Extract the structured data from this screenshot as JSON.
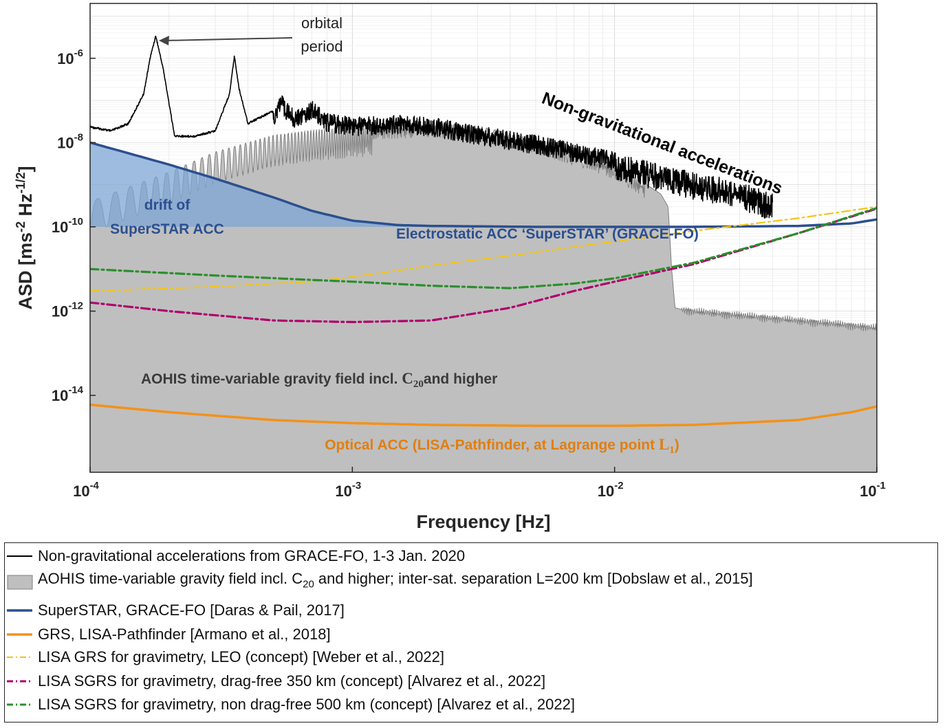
{
  "colors": {
    "nongrav": "#000000",
    "aohis_fill": "#bfbfbf",
    "aohis_line": "#7f7f7f",
    "superstar": "#2b4f8f",
    "superstar_fill": "#7ea6d4",
    "grs_lisa": "#f39119",
    "lisa_leo": "#f4c318",
    "sgrs_350": "#b0006d",
    "sgrs_500": "#2b8f2b"
  },
  "chart_data": {
    "type": "line",
    "xscale": "log",
    "yscale": "log",
    "xlim": [
      0.0001,
      0.1
    ],
    "ylim": [
      1.5e-16,
      2e-05
    ],
    "xlabel": "Frequency [Hz]",
    "ylabel": "ASD [ms^-2 Hz^-1/2]",
    "xticks": [
      {
        "value": 0.0001,
        "base": "10",
        "exp": "-4"
      },
      {
        "value": 0.001,
        "base": "10",
        "exp": "-3"
      },
      {
        "value": 0.01,
        "base": "10",
        "exp": "-2"
      },
      {
        "value": 0.1,
        "base": "10",
        "exp": "-1"
      }
    ],
    "yticks": [
      {
        "value": 1e-06,
        "base": "10",
        "exp": "-6"
      },
      {
        "value": 1e-08,
        "base": "10",
        "exp": "-8"
      },
      {
        "value": 1e-10,
        "base": "10",
        "exp": "-10"
      },
      {
        "value": 1e-12,
        "base": "10",
        "exp": "-12"
      },
      {
        "value": 1e-14,
        "base": "10",
        "exp": "-14"
      }
    ],
    "series": [
      {
        "name": "Non-gravitational accelerations from GRACE-FO, 1-3 Jan. 2020",
        "style": "solid",
        "x": [
          0.0001,
          0.00012,
          0.00014,
          0.00016,
          0.00017,
          0.000178,
          0.00019,
          0.00021,
          0.00025,
          0.0003,
          0.00034,
          0.000355,
          0.00037,
          0.0004,
          0.0005,
          0.00053,
          0.0006,
          0.0007,
          0.0008,
          0.001,
          0.0015,
          0.002,
          0.003,
          0.005,
          0.01,
          0.015,
          0.02,
          0.03,
          0.04
        ],
        "y": [
          2.5e-08,
          2e-08,
          3e-08,
          1.5e-07,
          1.2e-06,
          3.6e-06,
          6e-07,
          1.5e-08,
          1.5e-08,
          2e-08,
          1.5e-07,
          1.2e-06,
          2e-07,
          3e-08,
          6e-08,
          1.5e-07,
          6e-08,
          1e-07,
          5e-08,
          4e-08,
          4.5e-08,
          4e-08,
          2.5e-08,
          1.5e-08,
          6e-09,
          3e-09,
          2e-09,
          1.2e-09,
          6e-10
        ]
      },
      {
        "name": "AOHIS time-variable gravity field incl. C20 and higher; inter-sat. separation L=200 km [Dobslaw et al., 2015]",
        "style": "fill",
        "x": [
          0.0001,
          0.0002,
          0.0003,
          0.0005,
          0.0007,
          0.001,
          0.002,
          0.003,
          0.005,
          0.008,
          0.01,
          0.012,
          0.015,
          0.016,
          0.0165,
          0.017,
          0.018,
          0.02,
          0.03,
          0.05,
          0.07,
          0.1
        ],
        "y": [
          4e-10,
          2e-09,
          6e-09,
          1.5e-08,
          2e-08,
          2.5e-08,
          3e-08,
          2.5e-08,
          1.2e-08,
          5e-09,
          3e-09,
          1.5e-09,
          6e-10,
          3e-10,
          1e-11,
          1.2e-12,
          1.1e-12,
          1e-12,
          8e-13,
          6e-13,
          5e-13,
          4e-13
        ]
      },
      {
        "name": "SuperSTAR, GRACE-FO [Daras & Pail, 2017]",
        "style": "solid",
        "x": [
          0.0001,
          0.0002,
          0.0003,
          0.0005,
          0.0007,
          0.001,
          0.0015,
          0.002,
          0.005,
          0.01,
          0.02,
          0.05,
          0.08,
          0.1
        ],
        "y": [
          1e-08,
          3e-09,
          1.4e-09,
          5e-10,
          2.4e-10,
          1.4e-10,
          1.1e-10,
          1.05e-10,
          1e-10,
          1e-10,
          1e-10,
          1.05e-10,
          1.2e-10,
          1.5e-10
        ]
      },
      {
        "name": "GRS, LISA-Pathfinder [Armano et al., 2018]",
        "style": "solid",
        "x": [
          0.0001,
          0.0002,
          0.0005,
          0.001,
          0.002,
          0.005,
          0.01,
          0.02,
          0.05,
          0.08,
          0.1
        ],
        "y": [
          6e-15,
          4e-15,
          2.6e-15,
          2.2e-15,
          2e-15,
          1.9e-15,
          1.9e-15,
          2e-15,
          2.6e-15,
          4e-15,
          5.5e-15
        ]
      },
      {
        "name": "LISA GRS for gravimetry, LEO (concept) [Weber et al., 2022]",
        "style": "dashdot",
        "x": [
          0.0001,
          0.0003,
          0.0007,
          0.001,
          0.002,
          0.005,
          0.01,
          0.02,
          0.05,
          0.1
        ],
        "y": [
          3e-12,
          3.8e-12,
          5e-12,
          6.5e-12,
          1.2e-11,
          2.5e-11,
          4.5e-11,
          8e-11,
          1.6e-10,
          3e-10
        ]
      },
      {
        "name": "LISA SGRS for gravimetry, drag-free 350 km (concept) [Alvarez et al., 2022]",
        "style": "dashdot",
        "x": [
          0.0001,
          0.0002,
          0.0005,
          0.001,
          0.002,
          0.004,
          0.007,
          0.01,
          0.02,
          0.05,
          0.1
        ],
        "y": [
          1.6e-12,
          1e-12,
          6e-13,
          5.5e-13,
          6e-13,
          1.2e-12,
          3e-12,
          5e-12,
          1.3e-11,
          7e-11,
          2.7e-10
        ]
      },
      {
        "name": "LISA SGRS for gravimetry, non drag-free 500 km (concept) [Alvarez et al., 2022]",
        "style": "dashdot",
        "x": [
          0.0001,
          0.0003,
          0.0007,
          0.001,
          0.002,
          0.004,
          0.007,
          0.01,
          0.02,
          0.05,
          0.1
        ],
        "y": [
          1e-11,
          7e-12,
          5.5e-12,
          5e-12,
          4e-12,
          3.5e-12,
          4.5e-12,
          6e-12,
          1.4e-11,
          7e-11,
          2.8e-10
        ]
      }
    ],
    "annotations": {
      "orbital_line1": "orbital",
      "orbital_line2": "period",
      "nongrav": "Non-gravitational accelerations",
      "drift_line1": "drift of",
      "drift_line2": "SuperSTAR ACC",
      "electrostatic": "Electrostatic ACC ‘SuperSTAR’ (GRACE-FO)",
      "aohis_pre": "AOHIS time-variable gravity field incl. ",
      "aohis_sym": "C",
      "aohis_sub": "20",
      "aohis_post": "and higher",
      "optical_pre": "Optical ACC (LISA-Pathfinder, at Lagrange point ",
      "optical_sym": "L",
      "optical_sub": "1",
      "optical_post": ")"
    }
  },
  "legend": {
    "items": [
      {
        "label": "Non-gravitational accelerations from GRACE-FO, 1-3 Jan. 2020"
      },
      {
        "label_pre": "AOHIS time-variable gravity field incl. C",
        "label_sub": "20",
        "label_post": " and higher; inter-sat. separation L=200 km [Dobslaw et al., 2015]"
      },
      {
        "label": "SuperSTAR, GRACE-FO [Daras & Pail, 2017]"
      },
      {
        "label": "GRS, LISA-Pathfinder [Armano et al., 2018]"
      },
      {
        "label": "LISA GRS for gravimetry, LEO (concept) [Weber et al., 2022]"
      },
      {
        "label": "LISA SGRS for gravimetry, drag-free 350 km (concept) [Alvarez et al., 2022]"
      },
      {
        "label": "LISA SGRS for gravimetry, non drag-free 500 km (concept) [Alvarez et al., 2022]"
      }
    ]
  }
}
